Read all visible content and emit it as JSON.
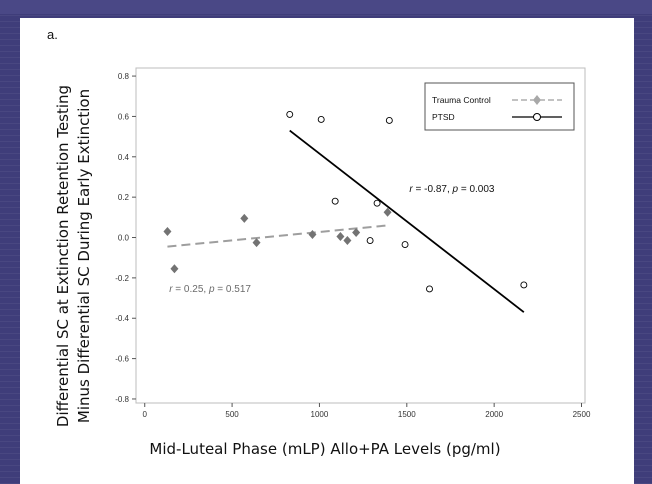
{
  "panel_label": "a.",
  "chart_data": {
    "type": "scatter",
    "ylabel_line1": "Differential SC at Extinction Retention Testing",
    "ylabel_line2": "Minus Differential SC During Early Extinction",
    "xlabel": "Mid-Luteal Phase (mLP) Allo+PA Levels (pg/ml)",
    "xlim": [
      -50,
      2520
    ],
    "ylim": [
      -0.82,
      0.84
    ],
    "x_ticks": [
      0,
      500,
      1000,
      1500,
      2000,
      2500
    ],
    "y_ticks": [
      0.8,
      0.6,
      0.4,
      0.2,
      0.0,
      -0.2,
      -0.4,
      -0.6,
      -0.8
    ],
    "x_tick_labels": [
      "0",
      "500",
      "1000",
      "1500",
      "2000",
      "2500"
    ],
    "y_tick_labels": [
      "0.8",
      "0.6",
      "0.4",
      "0.2",
      "0.0",
      "-0.2",
      "-0.4",
      "-0.6",
      "-0.8"
    ],
    "grid": false,
    "legend_position": "top-right",
    "series": [
      {
        "name": "Trauma Control",
        "marker": "diamond",
        "color": "#7f7f7f",
        "line_style": "dashed",
        "points": [
          {
            "x": 130,
            "y": 0.03
          },
          {
            "x": 170,
            "y": -0.155
          },
          {
            "x": 570,
            "y": 0.095
          },
          {
            "x": 640,
            "y": -0.025
          },
          {
            "x": 960,
            "y": 0.015
          },
          {
            "x": 1120,
            "y": 0.005
          },
          {
            "x": 1160,
            "y": -0.015
          },
          {
            "x": 1210,
            "y": 0.025
          },
          {
            "x": 1390,
            "y": 0.125
          }
        ],
        "fit": {
          "x": [
            130,
            1390
          ],
          "y": [
            -0.045,
            0.06
          ]
        },
        "annotation": {
          "text_pre": "r",
          "text_post": " = 0.25, ",
          "p_label": "p",
          "p_text": " = 0.517",
          "x": 140,
          "y": -0.27
        }
      },
      {
        "name": "PTSD",
        "marker": "circle",
        "color": "#000000",
        "line_style": "solid",
        "points": [
          {
            "x": 830,
            "y": 0.61
          },
          {
            "x": 1010,
            "y": 0.585
          },
          {
            "x": 1090,
            "y": 0.18
          },
          {
            "x": 1290,
            "y": -0.015
          },
          {
            "x": 1330,
            "y": 0.17
          },
          {
            "x": 1400,
            "y": 0.58
          },
          {
            "x": 1490,
            "y": -0.035
          },
          {
            "x": 1630,
            "y": -0.255
          },
          {
            "x": 2170,
            "y": -0.235
          }
        ],
        "fit": {
          "x": [
            830,
            2170
          ],
          "y": [
            0.53,
            -0.37
          ]
        },
        "annotation": {
          "text_pre": "r",
          "text_post": " = -0.87, ",
          "p_label": "p",
          "p_text": " = 0.003",
          "x": 1515,
          "y": 0.225
        }
      }
    ]
  }
}
